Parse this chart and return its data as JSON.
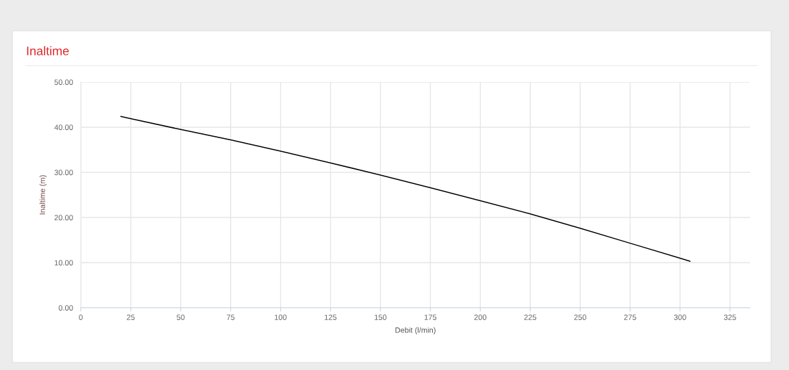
{
  "chart_data": {
    "type": "line",
    "title": "Inaltime",
    "xlabel": "Debit (l/min)",
    "ylabel": "Inaltime (m)",
    "x": [
      20,
      25,
      50,
      75,
      100,
      125,
      150,
      175,
      200,
      225,
      250,
      275,
      300,
      305
    ],
    "series": [
      {
        "color": "#000000",
        "values": [
          42.4,
          41.9,
          39.5,
          37.2,
          34.7,
          32.1,
          29.4,
          26.6,
          23.7,
          20.8,
          17.6,
          14.3,
          11.0,
          10.3
        ]
      }
    ],
    "xlim": [
      0,
      335
    ],
    "ylim": [
      0,
      50
    ],
    "xticks": [
      0,
      25,
      50,
      75,
      100,
      125,
      150,
      175,
      200,
      225,
      250,
      275,
      300,
      325
    ],
    "yticks": [
      {
        "value": 0,
        "label": "0.00"
      },
      {
        "value": 10,
        "label": "10.00"
      },
      {
        "value": 20,
        "label": "20.00"
      },
      {
        "value": 30,
        "label": "30.00"
      },
      {
        "value": 40,
        "label": "40.00"
      },
      {
        "value": 50,
        "label": "50.00"
      }
    ],
    "grid": true,
    "line_style": "solid"
  }
}
